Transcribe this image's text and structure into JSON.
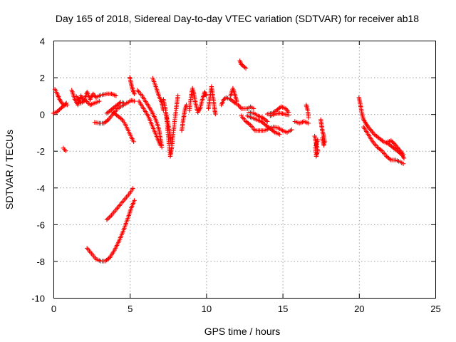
{
  "chart_data": {
    "type": "scatter",
    "title": "Day 165 of 2018, Sidereal Day-to-day VTEC variation (SDTVAR) for receiver ab18",
    "xlabel": "GPS time / hours",
    "ylabel": "SDTVAR / TECUs",
    "xlim": [
      0,
      25
    ],
    "ylim": [
      -10,
      4
    ],
    "xticks": [
      0,
      5,
      10,
      15,
      20,
      25
    ],
    "yticks": [
      -10,
      -8,
      -6,
      -4,
      -2,
      0,
      2,
      4
    ],
    "grid": true,
    "marker": "+",
    "series": [
      {
        "name": "SDTVAR",
        "color": "#ff0000",
        "tracks": [
          [
            [
              0.0,
              0.05
            ],
            [
              0.2,
              0.1
            ],
            [
              0.4,
              0.25
            ],
            [
              0.6,
              0.4
            ],
            [
              0.8,
              0.5
            ],
            [
              0.9,
              0.5
            ]
          ],
          [
            [
              0.1,
              1.35
            ],
            [
              0.25,
              1.1
            ],
            [
              0.4,
              0.8
            ],
            [
              0.55,
              0.6
            ],
            [
              0.7,
              0.5
            ],
            [
              0.85,
              0.6
            ]
          ],
          [
            [
              0.65,
              -1.85
            ],
            [
              0.8,
              -2.0
            ]
          ],
          [
            [
              1.2,
              1.3
            ],
            [
              1.4,
              0.8
            ],
            [
              1.6,
              0.5
            ],
            [
              1.8,
              1.0
            ],
            [
              2.0,
              0.7
            ],
            [
              2.2,
              1.2
            ],
            [
              2.4,
              0.8
            ],
            [
              2.6,
              1.1
            ],
            [
              2.8,
              0.9
            ],
            [
              3.0,
              1.0
            ],
            [
              3.2,
              1.05
            ],
            [
              3.5,
              1.1
            ],
            [
              3.8,
              1.1
            ],
            [
              4.1,
              1.0
            ]
          ],
          [
            [
              1.5,
              0.95
            ],
            [
              1.8,
              0.6
            ],
            [
              2.1,
              0.75
            ],
            [
              2.4,
              0.5
            ],
            [
              2.7,
              0.6
            ],
            [
              3.0,
              0.7
            ]
          ],
          [
            [
              2.7,
              -0.45
            ],
            [
              3.0,
              -0.5
            ],
            [
              3.3,
              -0.5
            ],
            [
              3.6,
              -0.3
            ],
            [
              3.9,
              0.0
            ],
            [
              4.2,
              0.3
            ],
            [
              4.5,
              0.45
            ],
            [
              4.8,
              0.6
            ],
            [
              5.1,
              0.75
            ],
            [
              5.3,
              0.7
            ]
          ],
          [
            [
              3.5,
              0.05
            ],
            [
              3.8,
              0.25
            ],
            [
              4.1,
              0.45
            ],
            [
              4.4,
              0.65
            ],
            [
              4.6,
              0.6
            ]
          ],
          [
            [
              3.9,
              0.1
            ],
            [
              4.2,
              -0.1
            ],
            [
              4.5,
              -0.3
            ],
            [
              4.7,
              -0.55
            ],
            [
              4.9,
              -0.9
            ],
            [
              5.1,
              -1.25
            ],
            [
              5.25,
              -1.5
            ]
          ],
          [
            [
              5.0,
              2.0
            ],
            [
              5.1,
              1.6
            ],
            [
              5.2,
              1.3
            ],
            [
              5.3,
              1.1
            ]
          ],
          [
            [
              5.5,
              1.3
            ],
            [
              5.8,
              1.0
            ],
            [
              6.1,
              0.6
            ],
            [
              6.4,
              0.2
            ],
            [
              6.7,
              -0.3
            ],
            [
              6.9,
              -0.8
            ],
            [
              7.0,
              -1.3
            ],
            [
              7.1,
              -1.8
            ]
          ],
          [
            [
              5.6,
              0.7
            ],
            [
              5.9,
              0.3
            ],
            [
              6.2,
              -0.1
            ],
            [
              6.5,
              -0.7
            ],
            [
              6.8,
              -1.3
            ],
            [
              7.0,
              -1.7
            ]
          ],
          [
            [
              6.5,
              1.95
            ],
            [
              6.7,
              1.5
            ],
            [
              6.9,
              1.0
            ],
            [
              7.1,
              0.6
            ],
            [
              7.2,
              0.2
            ]
          ],
          [
            [
              7.2,
              0.8
            ],
            [
              7.35,
              0.2
            ],
            [
              7.45,
              -0.6
            ],
            [
              7.55,
              -1.5
            ],
            [
              7.65,
              -2.3
            ],
            [
              7.75,
              -1.8
            ],
            [
              7.85,
              -1.0
            ],
            [
              7.95,
              -0.3
            ],
            [
              8.05,
              0.4
            ],
            [
              8.15,
              1.0
            ]
          ],
          [
            [
              7.35,
              0.1
            ],
            [
              7.5,
              -0.5
            ],
            [
              7.6,
              -1.0
            ],
            [
              7.7,
              -1.6
            ]
          ],
          [
            [
              8.4,
              -0.9
            ],
            [
              8.5,
              -0.3
            ],
            [
              8.6,
              0.2
            ],
            [
              8.7,
              0.5
            ]
          ],
          [
            [
              8.9,
              0.2
            ],
            [
              9.0,
              0.9
            ],
            [
              9.1,
              1.4
            ],
            [
              9.2,
              1.1
            ],
            [
              9.3,
              0.6
            ],
            [
              9.45,
              0.1
            ],
            [
              9.6,
              0.3
            ],
            [
              9.75,
              0.8
            ],
            [
              9.9,
              1.2
            ],
            [
              10.0,
              1.0
            ]
          ],
          [
            [
              10.15,
              0.3
            ],
            [
              10.25,
              0.9
            ],
            [
              10.35,
              1.5
            ],
            [
              10.45,
              0.9
            ],
            [
              10.55,
              0.3
            ],
            [
              10.6,
              0.0
            ]
          ],
          [
            [
              11.0,
              0.5
            ],
            [
              11.15,
              0.8
            ],
            [
              11.3,
              0.9
            ],
            [
              11.6,
              0.8
            ],
            [
              11.9,
              0.6
            ],
            [
              12.1,
              0.5
            ],
            [
              12.3,
              0.3
            ],
            [
              12.5,
              0.3
            ],
            [
              12.7,
              0.3
            ],
            [
              12.9,
              0.4
            ],
            [
              13.1,
              0.3
            ]
          ],
          [
            [
              11.6,
              1.0
            ],
            [
              11.75,
              1.4
            ],
            [
              11.9,
              1.0
            ],
            [
              12.0,
              0.7
            ]
          ],
          [
            [
              12.2,
              2.9
            ],
            [
              12.3,
              2.7
            ],
            [
              12.45,
              2.6
            ],
            [
              12.6,
              2.5
            ]
          ],
          [
            [
              12.3,
              -0.1
            ],
            [
              12.6,
              -0.4
            ],
            [
              12.9,
              -0.6
            ],
            [
              13.2,
              -0.9
            ],
            [
              13.5,
              -0.9
            ],
            [
              13.8,
              -0.9
            ],
            [
              14.1,
              -0.8
            ],
            [
              14.4,
              -0.7
            ],
            [
              14.7,
              -0.75
            ],
            [
              15.0,
              -0.9
            ],
            [
              15.3,
              -1.0
            ],
            [
              15.6,
              -0.85
            ]
          ],
          [
            [
              12.7,
              -0.1
            ],
            [
              13.0,
              -0.2
            ],
            [
              13.3,
              -0.3
            ],
            [
              13.6,
              -0.4
            ],
            [
              13.9,
              -0.6
            ],
            [
              14.2,
              -0.8
            ],
            [
              14.5,
              -1.0
            ],
            [
              14.8,
              -1.1
            ]
          ],
          [
            [
              12.8,
              0.1
            ],
            [
              13.1,
              0.05
            ],
            [
              13.4,
              -0.1
            ],
            [
              13.7,
              -0.2
            ],
            [
              14.0,
              -0.4
            ]
          ],
          [
            [
              14.0,
              0.0
            ],
            [
              14.3,
              0.05
            ],
            [
              14.6,
              0.2
            ],
            [
              14.9,
              0.4
            ],
            [
              15.2,
              0.3
            ],
            [
              15.4,
              0.1
            ]
          ],
          [
            [
              14.2,
              -0.1
            ],
            [
              14.5,
              0.0
            ],
            [
              14.8,
              0.05
            ],
            [
              15.1,
              0.0
            ],
            [
              15.4,
              -0.05
            ]
          ],
          [
            [
              15.8,
              -0.4
            ],
            [
              16.1,
              -0.5
            ],
            [
              16.4,
              -0.4
            ],
            [
              16.7,
              -0.5
            ]
          ],
          [
            [
              16.55,
              0.5
            ],
            [
              16.65,
              0.2
            ],
            [
              16.7,
              -0.2
            ]
          ],
          [
            [
              17.1,
              -1.2
            ],
            [
              17.2,
              -1.6
            ],
            [
              17.3,
              -2.0
            ],
            [
              17.2,
              -2.3
            ],
            [
              17.15,
              -1.8
            ],
            [
              17.3,
              -1.4
            ]
          ],
          [
            [
              17.5,
              -0.3
            ],
            [
              17.55,
              -0.6
            ],
            [
              17.6,
              -0.9
            ],
            [
              17.7,
              -1.2
            ],
            [
              17.75,
              -1.5
            ],
            [
              17.7,
              -1.7
            ],
            [
              17.6,
              -1.3
            ]
          ],
          [
            [
              20.0,
              0.9
            ],
            [
              20.1,
              0.5
            ],
            [
              20.2,
              0.0
            ],
            [
              20.3,
              -0.3
            ],
            [
              20.45,
              -0.5
            ],
            [
              20.6,
              -0.7
            ],
            [
              20.8,
              -0.9
            ],
            [
              21.0,
              -1.1
            ],
            [
              21.3,
              -1.3
            ],
            [
              21.6,
              -1.5
            ],
            [
              21.9,
              -1.6
            ],
            [
              22.2,
              -1.8
            ],
            [
              22.5,
              -2.0
            ],
            [
              22.8,
              -2.2
            ],
            [
              22.95,
              -2.4
            ]
          ],
          [
            [
              20.3,
              -0.7
            ],
            [
              20.6,
              -1.1
            ],
            [
              20.9,
              -1.5
            ],
            [
              21.2,
              -1.8
            ],
            [
              21.5,
              -2.0
            ],
            [
              21.8,
              -2.3
            ],
            [
              22.1,
              -2.5
            ],
            [
              22.4,
              -2.5
            ],
            [
              22.7,
              -2.6
            ],
            [
              22.9,
              -2.7
            ]
          ],
          [
            [
              21.9,
              -1.5
            ],
            [
              22.1,
              -1.45
            ],
            [
              22.3,
              -1.6
            ],
            [
              22.5,
              -1.8
            ],
            [
              22.7,
              -2.0
            ],
            [
              22.9,
              -2.2
            ]
          ],
          [
            [
              2.2,
              -7.3
            ],
            [
              2.5,
              -7.6
            ],
            [
              2.8,
              -7.9
            ],
            [
              3.1,
              -8.0
            ],
            [
              3.4,
              -8.0
            ],
            [
              3.7,
              -7.8
            ],
            [
              4.0,
              -7.4
            ],
            [
              4.3,
              -6.9
            ],
            [
              4.6,
              -6.3
            ],
            [
              4.9,
              -5.6
            ],
            [
              5.1,
              -5.1
            ],
            [
              5.3,
              -4.7
            ]
          ],
          [
            [
              3.5,
              -5.75
            ],
            [
              3.8,
              -5.5
            ],
            [
              4.1,
              -5.2
            ],
            [
              4.4,
              -4.9
            ],
            [
              4.7,
              -4.6
            ],
            [
              5.0,
              -4.3
            ],
            [
              5.2,
              -4.05
            ]
          ]
        ]
      }
    ]
  }
}
